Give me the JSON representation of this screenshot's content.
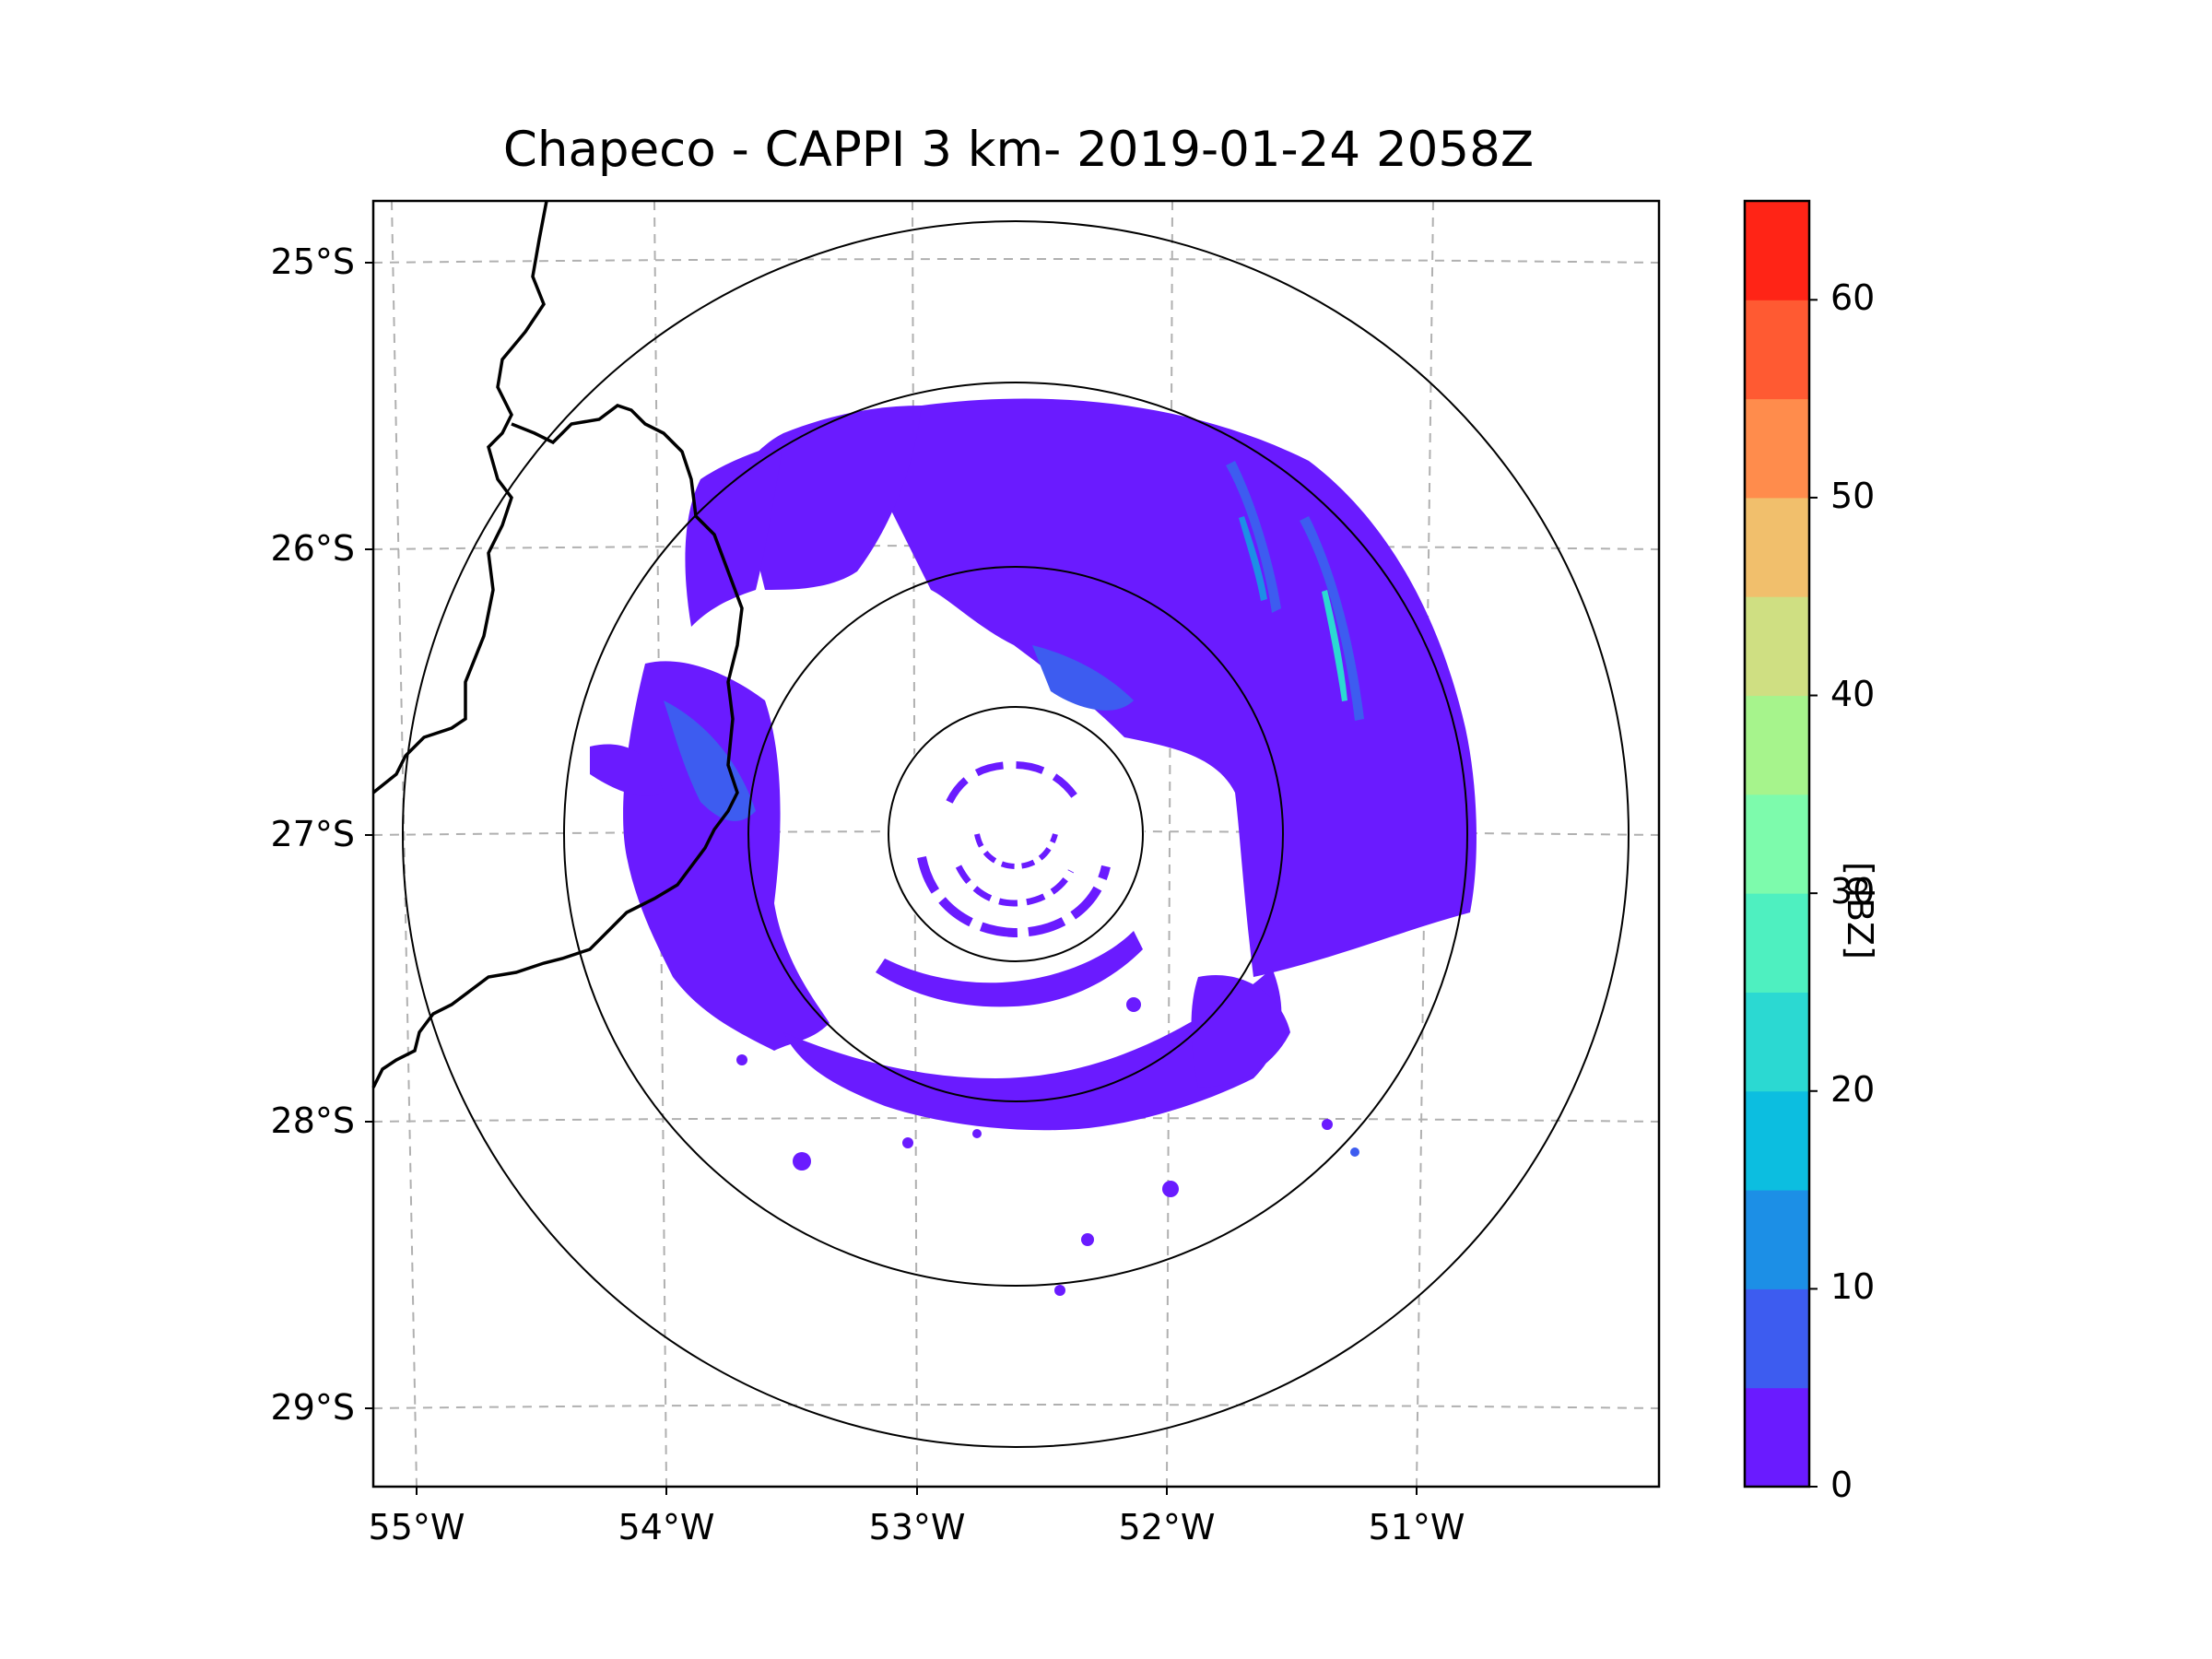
{
  "title": "Chapeco - CAPPI 3 km- 2019-01-24 2058Z",
  "lat_ticks": [
    "25°S",
    "26°S",
    "27°S",
    "28°S",
    "29°S"
  ],
  "lon_ticks": [
    "55°W",
    "54°W",
    "53°W",
    "52°W",
    "51°W"
  ],
  "colorbar": {
    "label": "[dBZ]",
    "ticks": [
      "0",
      "10",
      "20",
      "30",
      "40",
      "50",
      "60"
    ],
    "range": [
      0,
      65
    ],
    "bins": [
      {
        "from": 0,
        "to": 5,
        "color": "#6a1bff"
      },
      {
        "from": 5,
        "to": 10,
        "color": "#3d5cf0"
      },
      {
        "from": 10,
        "to": 15,
        "color": "#1c8fe6"
      },
      {
        "from": 15,
        "to": 20,
        "color": "#0cbee0"
      },
      {
        "from": 20,
        "to": 25,
        "color": "#2bd9d2"
      },
      {
        "from": 25,
        "to": 30,
        "color": "#4ef0c0"
      },
      {
        "from": 30,
        "to": 35,
        "color": "#7dfbac"
      },
      {
        "from": 35,
        "to": 40,
        "color": "#a6f48c"
      },
      {
        "from": 40,
        "to": 45,
        "color": "#cfdf82"
      },
      {
        "from": 45,
        "to": 50,
        "color": "#f1bf6c"
      },
      {
        "from": 50,
        "to": 55,
        "color": "#ff8c4c"
      },
      {
        "from": 55,
        "to": 60,
        "color": "#ff5a32"
      },
      {
        "from": 60,
        "to": 65,
        "color": "#ff2416"
      }
    ]
  },
  "radar": {
    "station": "Chapeco",
    "product": "CAPPI 3 km",
    "range_rings_count": 4
  }
}
